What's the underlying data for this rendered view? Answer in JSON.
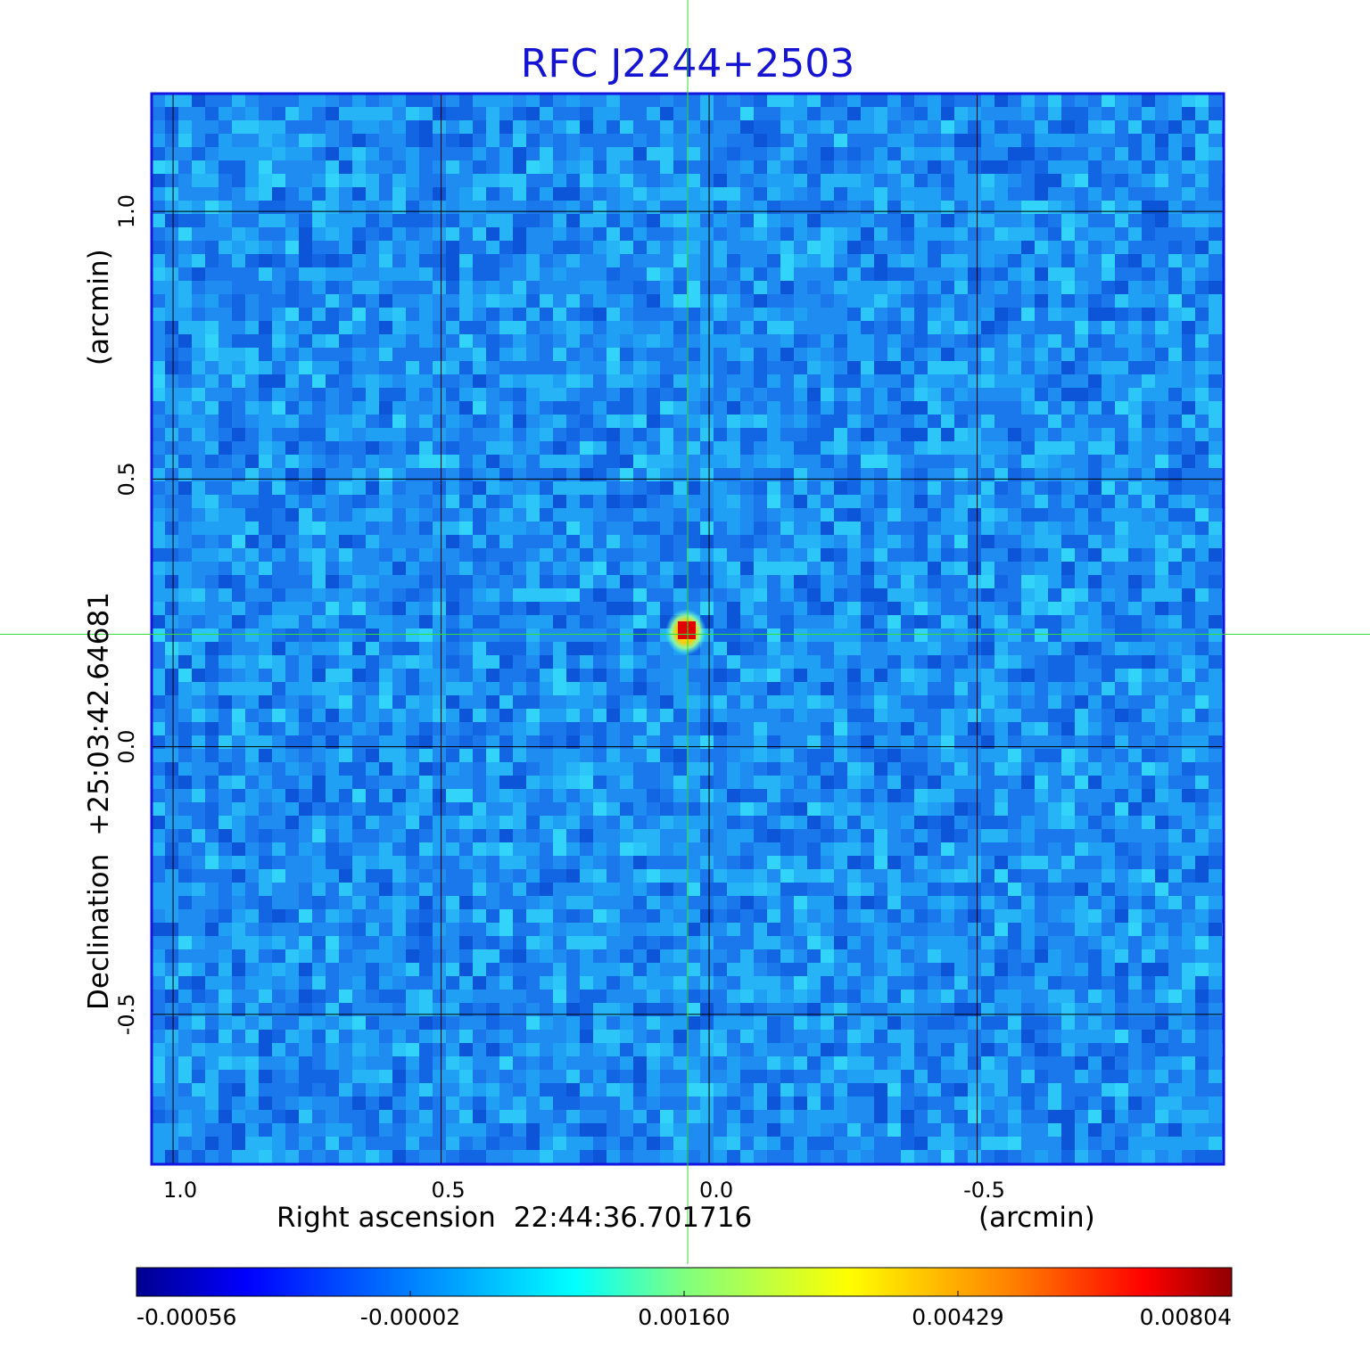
{
  "chart_data": {
    "type": "heatmap",
    "title": "RFC J2244+2503",
    "xlabel_text": "Right ascension",
    "xlabel_coord": "22:44:36.701716",
    "xlabel_unit": "(arcmin)",
    "ylabel_text": "Declination",
    "ylabel_coord": "+25:03:42.64681",
    "ylabel_unit": "(arcmin)",
    "x_ticks": [
      {
        "value": 1.0,
        "label": "1.0"
      },
      {
        "value": 0.5,
        "label": "0.5"
      },
      {
        "value": 0.0,
        "label": "0.0"
      },
      {
        "value": -0.5,
        "label": "-0.5"
      }
    ],
    "y_ticks": [
      {
        "value": 1.0,
        "label": "1.0"
      },
      {
        "value": 0.5,
        "label": "0.5"
      },
      {
        "value": 0.0,
        "label": "0.0"
      },
      {
        "value": -0.5,
        "label": "-0.5"
      }
    ],
    "xlim": [
      1.04,
      -0.96
    ],
    "ylim": [
      -0.78,
      1.22
    ],
    "grid": true,
    "crosshair": {
      "x": 0.04,
      "y": 0.21
    },
    "source_peak": {
      "x": 0.04,
      "y": 0.21,
      "value": 0.00804
    },
    "colorbar": {
      "orientation": "horizontal",
      "colormap": "jet",
      "ticks": [
        "-0.00056",
        "-0.00002",
        "0.00160",
        "0.00429",
        "0.00804"
      ]
    }
  },
  "colors": {
    "title": "#1414d2",
    "frame": "#1515e0",
    "grid": "#000000",
    "crosshair": "#33dd33"
  }
}
